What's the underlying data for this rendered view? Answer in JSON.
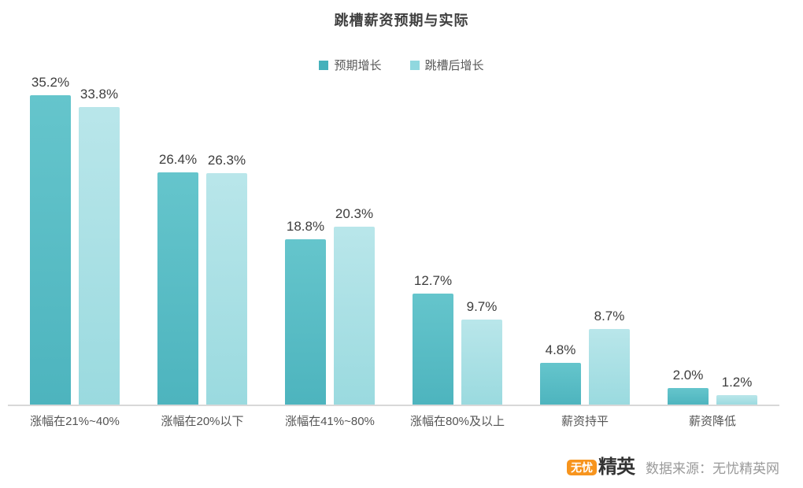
{
  "title": "跳槽薪资预期与实际",
  "chart_data": {
    "type": "bar",
    "title": "跳槽薪资预期与实际",
    "categories": [
      "涨幅在21%~40%",
      "涨幅在20%以下",
      "涨幅在41%~80%",
      "涨幅在80%及以上",
      "薪资持平",
      "薪资降低"
    ],
    "series": [
      {
        "name": "预期增长",
        "values": [
          35.2,
          26.4,
          18.8,
          12.7,
          4.8,
          2.0
        ],
        "color": "#45b1bb",
        "color_top": "#65c5cc",
        "color_bottom": "#4db4be"
      },
      {
        "name": "跳槽后增长",
        "values": [
          33.8,
          26.3,
          20.3,
          9.7,
          8.7,
          1.2
        ],
        "color": "#90d8df",
        "color_top": "#b9e6ea",
        "color_bottom": "#9adadf"
      }
    ],
    "value_suffix": "%",
    "data_labels": true,
    "ylim": [
      0,
      38
    ],
    "grid": false,
    "y_axis_visible": false,
    "legend_position": "top-center"
  },
  "footer": {
    "logo_badge": "无忧",
    "logo_text": "精英",
    "badge_color": "#f7941d",
    "source": "数据来源：无忧精英网"
  }
}
